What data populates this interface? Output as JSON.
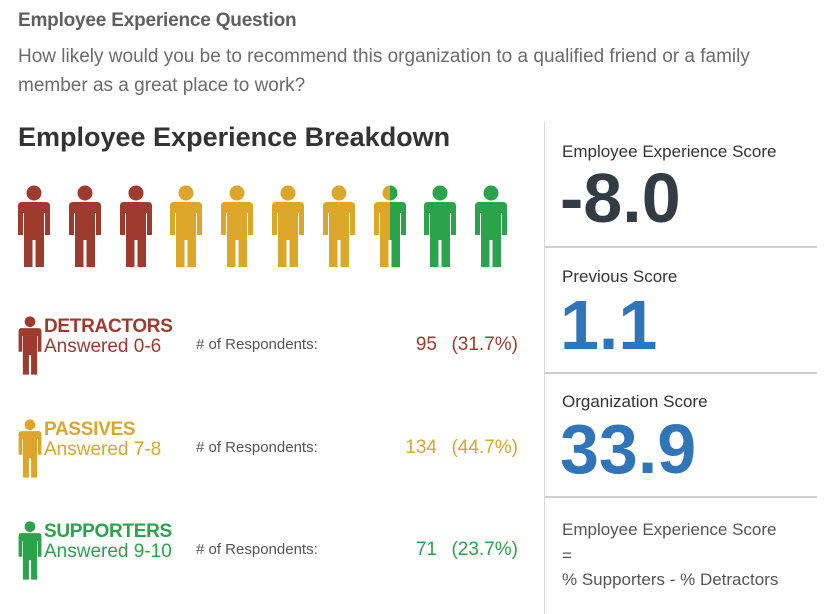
{
  "question": {
    "title": "Employee Experience Question",
    "text": "How likely would you be to recommend this organization to a qualified friend or a family member as a great place to work?"
  },
  "breakdown": {
    "title": "Employee Experience Breakdown",
    "people": [
      "detractor",
      "detractor",
      "detractor",
      "passive",
      "passive",
      "passive",
      "passive",
      "passive-supporter",
      "supporter",
      "supporter"
    ]
  },
  "colors": {
    "detractor": "#9e3b2f",
    "passive": "#dca62a",
    "supporter": "#2ba34a",
    "score_dark": "#333c45",
    "score_blue": "#2f75b8"
  },
  "categories": [
    {
      "key": "detractor",
      "name": "DETRACTORS",
      "range": "Answered 0-6",
      "resp_label": "# of Respondents:",
      "count": "95",
      "pct": "(31.7%)"
    },
    {
      "key": "passive",
      "name": "PASSIVES",
      "range": "Answered 7-8",
      "resp_label": "# of Respondents:",
      "count": "134",
      "pct": "(44.7%)"
    },
    {
      "key": "supporter",
      "name": "SUPPORTERS",
      "range": "Answered 9-10",
      "resp_label": "# of Respondents:",
      "count": "71",
      "pct": "(23.7%)"
    }
  ],
  "scores": {
    "experience": {
      "label": "Employee Experience Score",
      "value": "-8.0"
    },
    "previous": {
      "label": "Previous Score",
      "value": "1.1"
    },
    "organization": {
      "label": "Organization Score",
      "value": "33.9"
    },
    "formula": {
      "line1": "Employee Experience Score",
      "line2": "=",
      "line3": "% Supporters - % Detractors"
    }
  }
}
